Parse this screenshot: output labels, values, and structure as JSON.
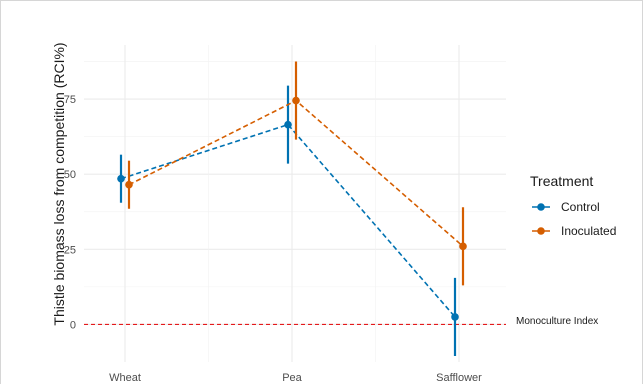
{
  "chart_data": {
    "type": "line",
    "title": "",
    "xlabel": "",
    "ylabel": "Thistle biomass loss from competition (RCI%)",
    "categories": [
      "Wheat",
      "Pea",
      "Safflower"
    ],
    "y_ticks": [
      0,
      25,
      50,
      75
    ],
    "ylim": [
      -12.5,
      93
    ],
    "grid": true,
    "legend": {
      "title": "Treatment",
      "placement": "right"
    },
    "series": [
      {
        "name": "Control",
        "color": "#0072B2",
        "values": [
          48.5,
          66.5,
          2.5
        ],
        "error_low": [
          40.5,
          53.5,
          -10.5
        ],
        "error_high": [
          56.5,
          79.5,
          15.5
        ]
      },
      {
        "name": "Inoculated",
        "color": "#D55E00",
        "values": [
          46.5,
          74.5,
          26
        ],
        "error_low": [
          38.5,
          61.5,
          13
        ],
        "error_high": [
          54.5,
          87.5,
          39
        ]
      }
    ],
    "reference_line": {
      "y": 0,
      "label": "Monoculture Index",
      "color": "#E41A1C"
    }
  }
}
